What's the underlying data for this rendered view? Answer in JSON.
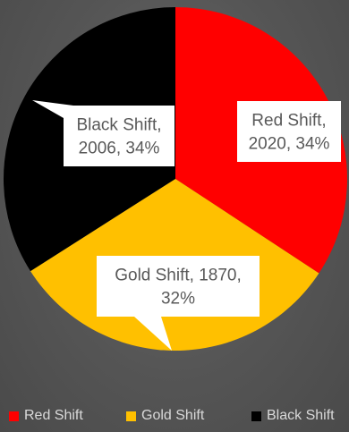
{
  "chart_data": {
    "type": "pie",
    "title": "",
    "slices": [
      {
        "name": "Red Shift",
        "value": 2020,
        "percent": 34,
        "color": "#ff0000",
        "label_lines": [
          "Red Shift,",
          "2020, 34%"
        ]
      },
      {
        "name": "Gold Shift",
        "value": 1870,
        "percent": 32,
        "color": "#ffc000",
        "label_lines": [
          "Gold Shift, 1870,",
          "32%"
        ]
      },
      {
        "name": "Black Shift",
        "value": 2006,
        "percent": 34,
        "color": "#000000",
        "label_lines": [
          "Black Shift,",
          "2006, 34%"
        ]
      }
    ],
    "start_angle_deg": 0,
    "direction": "clockwise",
    "legend_position": "bottom",
    "background_color": "#595959",
    "label_box_color": "#ffffff",
    "label_text_color": "#595959"
  }
}
